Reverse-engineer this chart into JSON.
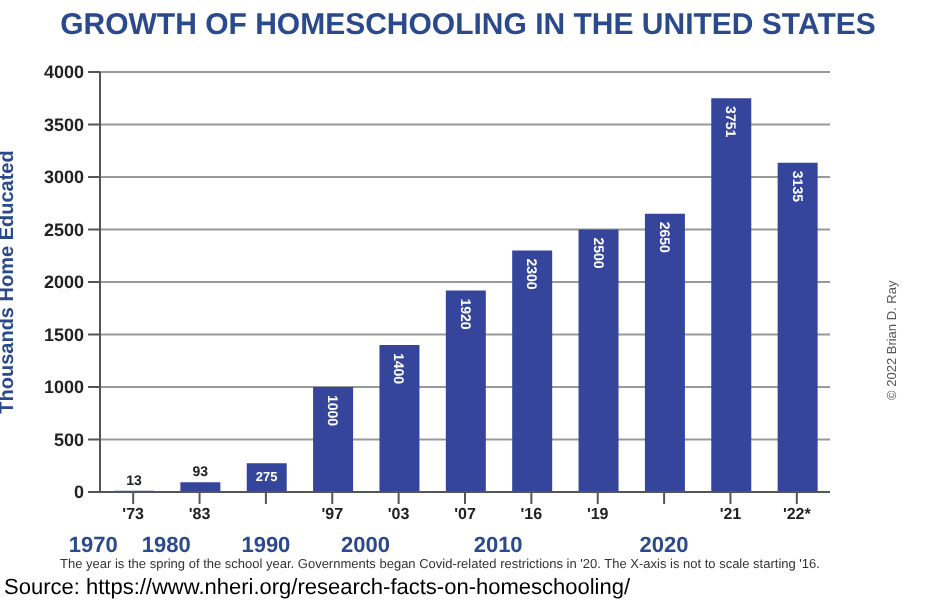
{
  "chart_data": {
    "type": "bar",
    "title": "GROWTH OF HOMESCHOOLING IN THE UNITED STATES",
    "ylabel": "Thousands Home Educated",
    "categories": [
      "'73",
      "'83",
      null,
      "'97",
      "'03",
      "'07",
      "'16",
      "'19",
      null,
      "'21",
      "'22*"
    ],
    "values": [
      13,
      93,
      275,
      1000,
      1400,
      1920,
      2300,
      2500,
      2650,
      3751,
      3135
    ],
    "color": "#34459b",
    "ylim": [
      0,
      4000
    ],
    "yticks": [
      0,
      500,
      1000,
      1500,
      2000,
      2500,
      3000,
      3500,
      4000
    ],
    "grid": "y",
    "data_labels": true,
    "annotations": [
      "1970",
      "1980",
      "1990",
      "2000",
      "2010",
      "2020",
      "The year is the spring of the school year. Governments began Covid-related restrictions in '20. The X-axis is not to scale starting '16.",
      "© 2022 Brian D. Ray",
      "Source: https://www.nheri.org/research-facts-on-homeschooling/"
    ]
  }
}
